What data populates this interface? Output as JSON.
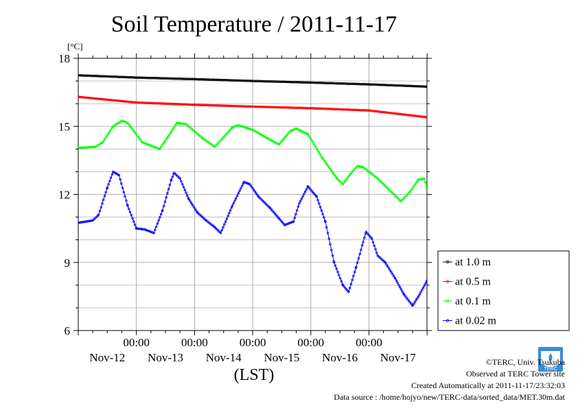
{
  "chart_data": {
    "type": "line",
    "title": "Soil Temperature / 2011-11-17",
    "ylabel": "[°C]",
    "xlabel": "(LST)",
    "ylim": [
      6,
      18
    ],
    "yticks": [
      6,
      9,
      12,
      15,
      18
    ],
    "xlim": [
      0,
      6
    ],
    "x_unit": "days",
    "x_tick_labels": [
      "00:00",
      "00:00",
      "00:00",
      "00:00",
      "00:00"
    ],
    "x_tick_positions": [
      1,
      2,
      3,
      4,
      5
    ],
    "x_day_labels": [
      "Nov-12",
      "Nov-13",
      "Nov-14",
      "Nov-15",
      "Nov-16",
      "Nov-17"
    ],
    "grid": true,
    "legend_position": "right",
    "series": [
      {
        "name": "at 1.0 m",
        "color": "#000000",
        "points": [
          [
            0.0,
            17.25
          ],
          [
            1.0,
            17.15
          ],
          [
            2.0,
            17.08
          ],
          [
            3.0,
            17.0
          ],
          [
            4.0,
            16.93
          ],
          [
            5.0,
            16.85
          ],
          [
            6.0,
            16.75
          ]
        ]
      },
      {
        "name": "at 0.5 m",
        "color": "#ff0000",
        "points": [
          [
            0.0,
            16.3
          ],
          [
            1.0,
            16.05
          ],
          [
            2.0,
            15.95
          ],
          [
            3.0,
            15.87
          ],
          [
            4.0,
            15.8
          ],
          [
            5.0,
            15.7
          ],
          [
            6.0,
            15.4
          ]
        ]
      },
      {
        "name": "at 0.1 m",
        "color": "#00ff00",
        "points": [
          [
            0.0,
            14.05
          ],
          [
            0.3,
            14.1
          ],
          [
            0.42,
            14.3
          ],
          [
            0.6,
            15.0
          ],
          [
            0.75,
            15.25
          ],
          [
            0.85,
            15.15
          ],
          [
            1.1,
            14.3
          ],
          [
            1.25,
            14.15
          ],
          [
            1.4,
            14.0
          ],
          [
            1.7,
            15.15
          ],
          [
            1.85,
            15.1
          ],
          [
            2.15,
            14.45
          ],
          [
            2.35,
            14.1
          ],
          [
            2.65,
            14.95
          ],
          [
            2.75,
            15.05
          ],
          [
            3.0,
            14.85
          ],
          [
            3.2,
            14.55
          ],
          [
            3.45,
            14.2
          ],
          [
            3.65,
            14.8
          ],
          [
            3.75,
            14.9
          ],
          [
            3.95,
            14.65
          ],
          [
            4.2,
            13.6
          ],
          [
            4.45,
            12.7
          ],
          [
            4.55,
            12.45
          ],
          [
            4.68,
            12.9
          ],
          [
            4.8,
            13.25
          ],
          [
            4.9,
            13.2
          ],
          [
            5.15,
            12.7
          ],
          [
            5.35,
            12.2
          ],
          [
            5.55,
            11.7
          ],
          [
            5.7,
            12.1
          ],
          [
            5.85,
            12.65
          ],
          [
            5.95,
            12.7
          ],
          [
            6.0,
            12.3
          ]
        ]
      },
      {
        "name": "at 0.02 m",
        "color": "#0000ff",
        "points": [
          [
            0.0,
            10.75
          ],
          [
            0.25,
            10.85
          ],
          [
            0.35,
            11.1
          ],
          [
            0.5,
            12.3
          ],
          [
            0.6,
            13.0
          ],
          [
            0.7,
            12.85
          ],
          [
            0.85,
            11.5
          ],
          [
            1.0,
            10.5
          ],
          [
            1.15,
            10.45
          ],
          [
            1.3,
            10.3
          ],
          [
            1.45,
            11.3
          ],
          [
            1.6,
            12.65
          ],
          [
            1.65,
            12.95
          ],
          [
            1.75,
            12.7
          ],
          [
            1.9,
            11.8
          ],
          [
            2.05,
            11.2
          ],
          [
            2.2,
            10.85
          ],
          [
            2.35,
            10.55
          ],
          [
            2.45,
            10.3
          ],
          [
            2.65,
            11.5
          ],
          [
            2.85,
            12.55
          ],
          [
            2.95,
            12.45
          ],
          [
            3.1,
            11.9
          ],
          [
            3.3,
            11.4
          ],
          [
            3.45,
            10.95
          ],
          [
            3.55,
            10.65
          ],
          [
            3.7,
            10.8
          ],
          [
            3.8,
            11.6
          ],
          [
            3.95,
            12.35
          ],
          [
            4.1,
            11.9
          ],
          [
            4.25,
            10.8
          ],
          [
            4.4,
            9.0
          ],
          [
            4.55,
            8.0
          ],
          [
            4.65,
            7.7
          ],
          [
            4.78,
            8.8
          ],
          [
            4.9,
            9.9
          ],
          [
            4.95,
            10.35
          ],
          [
            5.05,
            10.05
          ],
          [
            5.15,
            9.3
          ],
          [
            5.28,
            9.0
          ],
          [
            5.45,
            8.3
          ],
          [
            5.6,
            7.6
          ],
          [
            5.75,
            7.1
          ],
          [
            5.85,
            7.5
          ],
          [
            6.0,
            8.2
          ],
          [
            6.1,
            10.05
          ]
        ]
      }
    ]
  },
  "credits": {
    "copyright": "©TERC, Univ. Tsukuba",
    "observed": "Observed at TERC Tower site",
    "created": "Created Automatically at 2011-11-17/23:32:03",
    "source": "Data source : /home/hojyo/new/TERC-data/sorted_data/MET.30m.dat"
  },
  "logo": {
    "text": "TERC"
  }
}
